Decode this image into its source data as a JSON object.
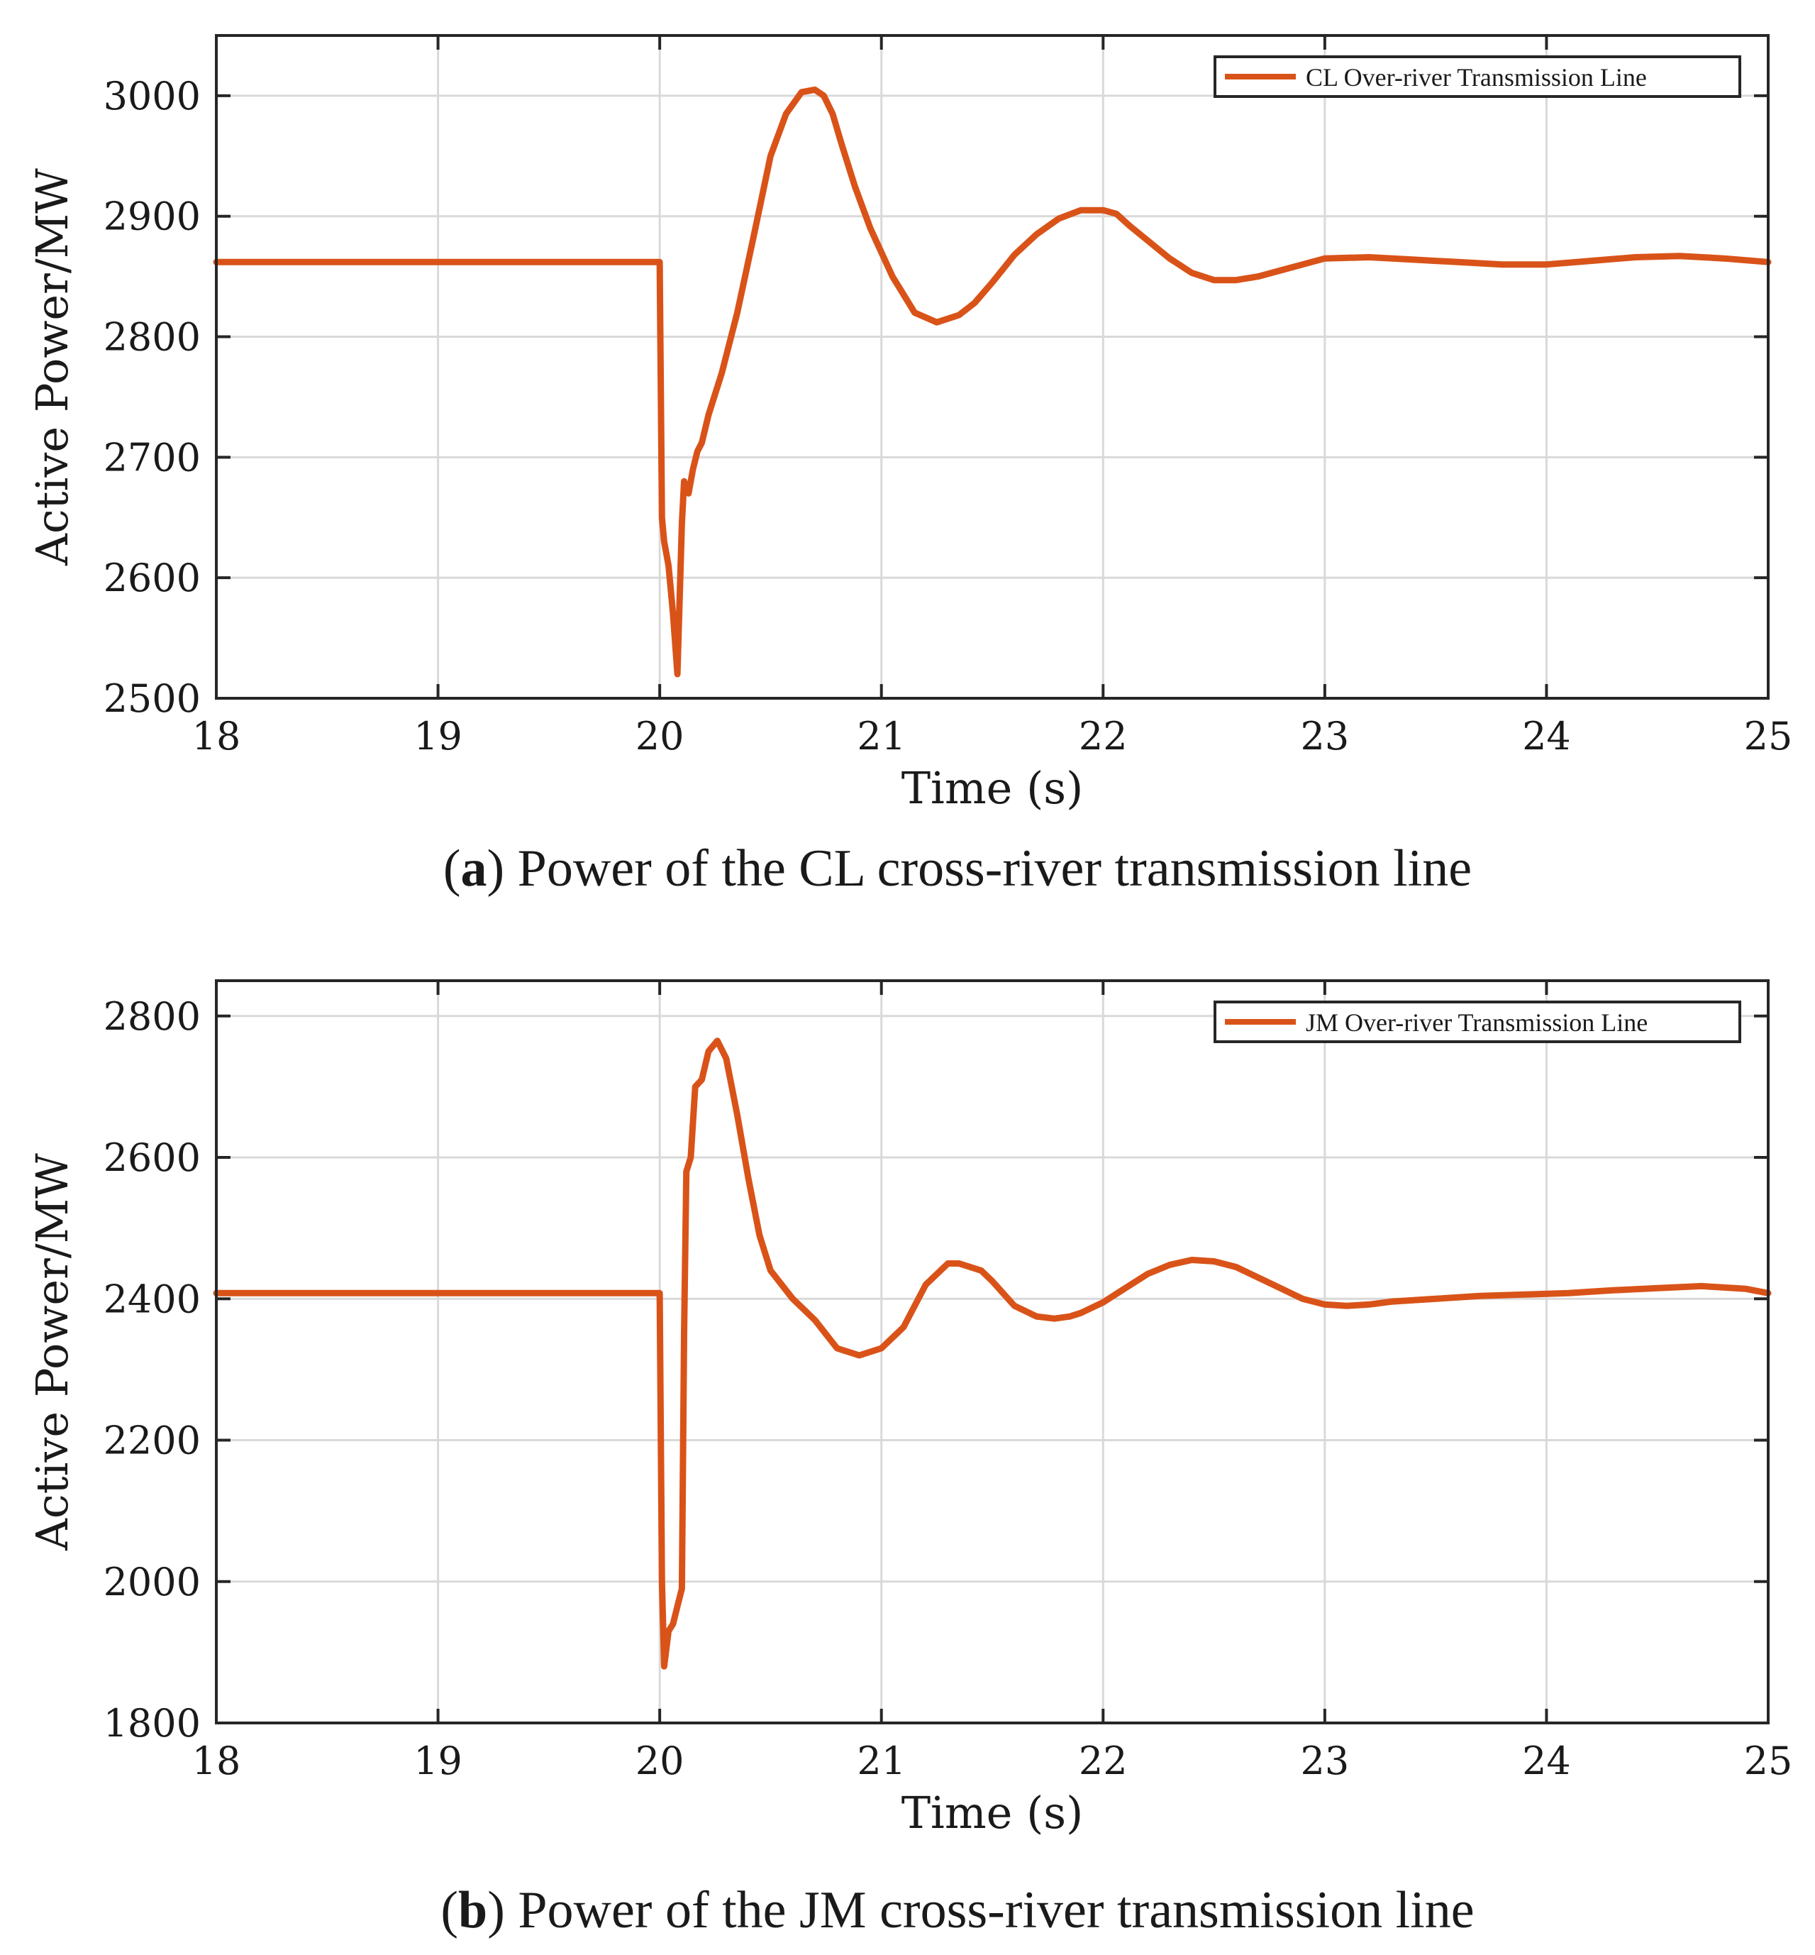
{
  "chart_data": [
    {
      "type": "line",
      "xlabel": "Time (s)",
      "ylabel": "Active Power/MW",
      "xlim": [
        18,
        25
      ],
      "ylim": [
        2500,
        3050
      ],
      "xticks": [
        "18",
        "19",
        "20",
        "21",
        "22",
        "23",
        "24",
        "25"
      ],
      "yticks": [
        "2500",
        "2600",
        "2700",
        "2800",
        "2900",
        "3000"
      ],
      "grid": true,
      "legend_position": "top-right",
      "caption_label": "a",
      "caption_text": "Power of the CL cross-river transmission line",
      "series": [
        {
          "name": "CL Over-river Transmission Line",
          "color": "#d95319",
          "x": [
            18,
            20.0,
            20.01,
            20.02,
            20.04,
            20.06,
            20.08,
            20.1,
            20.11,
            20.13,
            20.15,
            20.17,
            20.19,
            20.22,
            20.28,
            20.35,
            20.42,
            20.5,
            20.57,
            20.64,
            20.7,
            20.74,
            20.78,
            20.82,
            20.88,
            20.95,
            21.05,
            21.15,
            21.25,
            21.35,
            21.42,
            21.5,
            21.6,
            21.7,
            21.8,
            21.9,
            22.0,
            22.06,
            22.12,
            22.2,
            22.3,
            22.4,
            22.5,
            22.6,
            22.7,
            22.8,
            22.9,
            23.0,
            23.2,
            23.4,
            23.6,
            23.8,
            24.0,
            24.2,
            24.4,
            24.6,
            24.8,
            25.0
          ],
          "y": [
            2862,
            2862,
            2650,
            2630,
            2610,
            2570,
            2520,
            2645,
            2680,
            2670,
            2690,
            2705,
            2712,
            2735,
            2770,
            2820,
            2880,
            2950,
            2985,
            3003,
            3005,
            3000,
            2985,
            2960,
            2925,
            2890,
            2850,
            2820,
            2812,
            2818,
            2828,
            2845,
            2868,
            2885,
            2898,
            2905,
            2905,
            2902,
            2892,
            2880,
            2865,
            2853,
            2847,
            2847,
            2850,
            2855,
            2860,
            2865,
            2866,
            2864,
            2862,
            2860,
            2860,
            2863,
            2866,
            2867,
            2865,
            2862
          ]
        }
      ]
    },
    {
      "type": "line",
      "xlabel": "Time (s)",
      "ylabel": "Active Power/MW",
      "xlim": [
        18,
        25
      ],
      "ylim": [
        1800,
        2850
      ],
      "xticks": [
        "18",
        "19",
        "20",
        "21",
        "22",
        "23",
        "24",
        "25"
      ],
      "yticks": [
        "1800",
        "2000",
        "2200",
        "2400",
        "2600",
        "2800"
      ],
      "grid": true,
      "legend_position": "top-right",
      "caption_label": "b",
      "caption_text": "Power of the JM cross-river transmission line",
      "series": [
        {
          "name": "JM Over-river Transmission Line",
          "color": "#d95319",
          "x": [
            18,
            20.0,
            20.01,
            20.02,
            20.04,
            20.06,
            20.08,
            20.1,
            20.11,
            20.12,
            20.14,
            20.16,
            20.19,
            20.22,
            20.26,
            20.3,
            20.35,
            20.4,
            20.45,
            20.5,
            20.6,
            20.7,
            20.8,
            20.9,
            20.95,
            21.0,
            21.1,
            21.2,
            21.3,
            21.35,
            21.45,
            21.5,
            21.6,
            21.7,
            21.78,
            21.85,
            21.9,
            22.0,
            22.1,
            22.2,
            22.3,
            22.4,
            22.5,
            22.6,
            22.7,
            22.8,
            22.9,
            23.0,
            23.1,
            23.2,
            23.3,
            23.5,
            23.7,
            23.9,
            24.1,
            24.3,
            24.5,
            24.7,
            24.9,
            25.0
          ],
          "y": [
            2408,
            2408,
            2000,
            1880,
            1930,
            1940,
            1965,
            1990,
            2350,
            2580,
            2600,
            2700,
            2710,
            2750,
            2765,
            2740,
            2660,
            2570,
            2490,
            2440,
            2400,
            2370,
            2330,
            2320,
            2325,
            2330,
            2360,
            2420,
            2450,
            2450,
            2440,
            2425,
            2390,
            2375,
            2372,
            2375,
            2380,
            2395,
            2415,
            2435,
            2448,
            2455,
            2453,
            2445,
            2430,
            2415,
            2400,
            2392,
            2390,
            2392,
            2396,
            2400,
            2404,
            2406,
            2408,
            2412,
            2415,
            2418,
            2414,
            2408
          ]
        }
      ]
    }
  ]
}
